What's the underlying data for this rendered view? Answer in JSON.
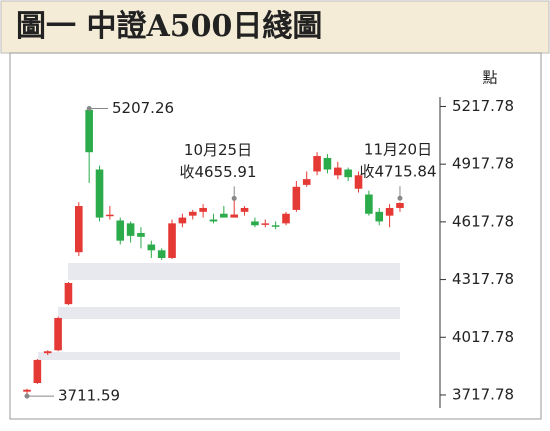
{
  "chart_data": {
    "type": "candlestick",
    "title": "圖一 中證A500日綫圖",
    "y_label": "點",
    "up_color": "#e53935",
    "down_color": "#2bab4a",
    "series": [
      {
        "open": [
          3735,
          3780,
          3935,
          3950,
          4190,
          4460,
          5200,
          4890,
          4650,
          4625,
          4610,
          4560,
          4500,
          4470,
          4430,
          4610,
          4650,
          4670,
          4630,
          4660,
          4640,
          4670,
          4620,
          4605,
          4600,
          4610,
          4680,
          4810,
          4880,
          4950,
          4860,
          4890,
          4790,
          4760,
          4670,
          4650,
          4690
        ],
        "close": [
          3745,
          3900,
          3945,
          4118,
          4300,
          4700,
          4980,
          4640,
          4655,
          4520,
          4545,
          4540,
          4470,
          4430,
          4610,
          4640,
          4670,
          4690,
          4620,
          4640,
          4655.91,
          4690,
          4600,
          4610,
          4595,
          4660,
          4800,
          4840,
          4960,
          4890,
          4900,
          4850,
          4860,
          4660,
          4620,
          4690,
          4715.84
        ],
        "high": [
          3750,
          3905,
          3950,
          4125,
          4305,
          4720,
          5207.26,
          4910,
          4700,
          4640,
          4620,
          4590,
          4520,
          4480,
          4630,
          4660,
          4680,
          4710,
          4660,
          4700,
          4740,
          4700,
          4640,
          4630,
          4620,
          4670,
          4830,
          4880,
          4980,
          4970,
          4930,
          4900,
          4880,
          4780,
          4690,
          4710,
          4720
        ],
        "low": [
          3711.59,
          3775,
          3925,
          3945,
          4185,
          4440,
          4820,
          4620,
          4630,
          4500,
          4510,
          4480,
          4430,
          4420,
          4425,
          4590,
          4630,
          4640,
          4610,
          4640,
          4640,
          4650,
          4590,
          4590,
          4580,
          4600,
          4670,
          4800,
          4860,
          4870,
          4840,
          4830,
          4770,
          4650,
          4600,
          4590,
          4670
        ]
      }
    ],
    "ylim": [
      3650,
      5267
    ],
    "yticks": [
      3717.78,
      4017.78,
      4317.78,
      4617.78,
      4917.78,
      5217.78
    ],
    "annotations": [
      {
        "text": [
          "5207.26"
        ]
      },
      {
        "text": [
          "10月25日",
          "收4655.91"
        ]
      },
      {
        "text": [
          "11月20日",
          "收4715.84"
        ]
      },
      {
        "text": [
          "3711.59"
        ]
      }
    ]
  }
}
